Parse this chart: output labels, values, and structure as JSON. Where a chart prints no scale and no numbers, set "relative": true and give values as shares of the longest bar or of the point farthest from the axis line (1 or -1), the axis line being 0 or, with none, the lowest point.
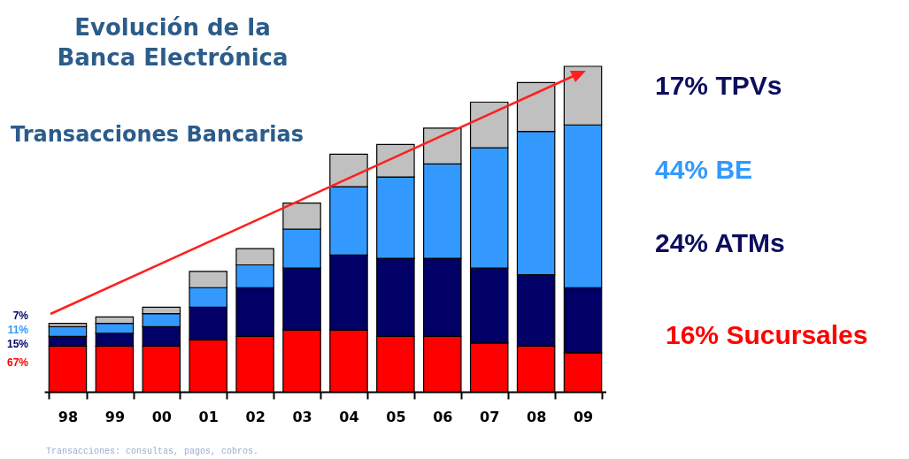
{
  "chart_data": {
    "type": "bar",
    "title": "Evolución de la\nBanca Electrónica",
    "subtitle": "Transacciones Bancarias",
    "categories": [
      "98",
      "99",
      "00",
      "01",
      "02",
      "03",
      "04",
      "05",
      "06",
      "07",
      "08",
      "09"
    ],
    "stacked": true,
    "relative": true,
    "legend": "right",
    "series": [
      {
        "name": "16% Sucursales",
        "color": "#ff0000",
        "values": [
          0.14,
          0.14,
          0.14,
          0.16,
          0.17,
          0.19,
          0.19,
          0.17,
          0.17,
          0.15,
          0.14,
          0.12
        ]
      },
      {
        "name": "24% ATMs",
        "color": "#000066",
        "values": [
          0.03,
          0.04,
          0.06,
          0.1,
          0.15,
          0.19,
          0.23,
          0.24,
          0.24,
          0.23,
          0.22,
          0.2
        ]
      },
      {
        "name": "44% BE",
        "color": "#3399ff",
        "values": [
          0.03,
          0.03,
          0.04,
          0.06,
          0.07,
          0.12,
          0.21,
          0.25,
          0.29,
          0.37,
          0.44,
          0.5
        ]
      },
      {
        "name": "17% TPVs",
        "color": "#c0c0c0",
        "values": [
          0.01,
          0.02,
          0.02,
          0.05,
          0.05,
          0.08,
          0.1,
          0.1,
          0.11,
          0.14,
          0.15,
          0.18
        ]
      }
    ],
    "annotations": [
      "7%",
      "11%",
      "15%",
      "67%",
      "Transacciones: consultas, pagos, cobros."
    ]
  }
}
